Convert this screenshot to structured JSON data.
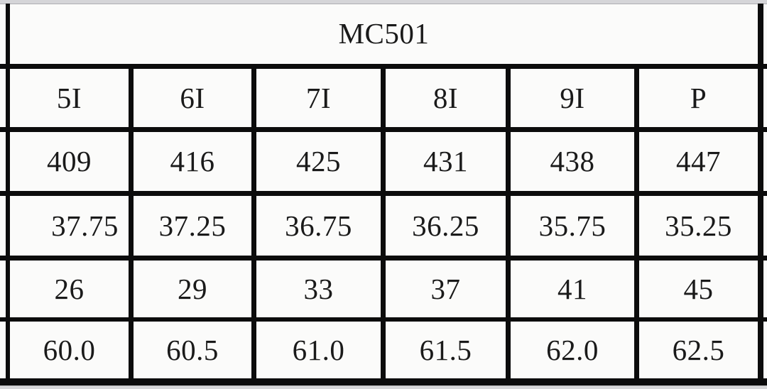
{
  "table": {
    "title": "MC501",
    "columns": [
      "5I",
      "6I",
      "7I",
      "8I",
      "9I",
      "P"
    ],
    "rows": [
      {
        "values": [
          "409",
          "416",
          "425",
          "431",
          "438",
          "447"
        ]
      },
      {
        "values": [
          "37.75",
          "37.25",
          "36.75",
          "36.25",
          "35.75",
          "35.25"
        ]
      },
      {
        "values": [
          "26",
          "29",
          "33",
          "37",
          "41",
          "45"
        ]
      },
      {
        "values": [
          "60.0",
          "60.5",
          "61.0",
          "61.5",
          "62.0",
          "62.5"
        ]
      }
    ]
  },
  "colors": {
    "gridline": "#0c0c0c",
    "text": "#1a1a1a",
    "paper": "#fbfbfa",
    "crop_edge": "#d5d5d8"
  }
}
